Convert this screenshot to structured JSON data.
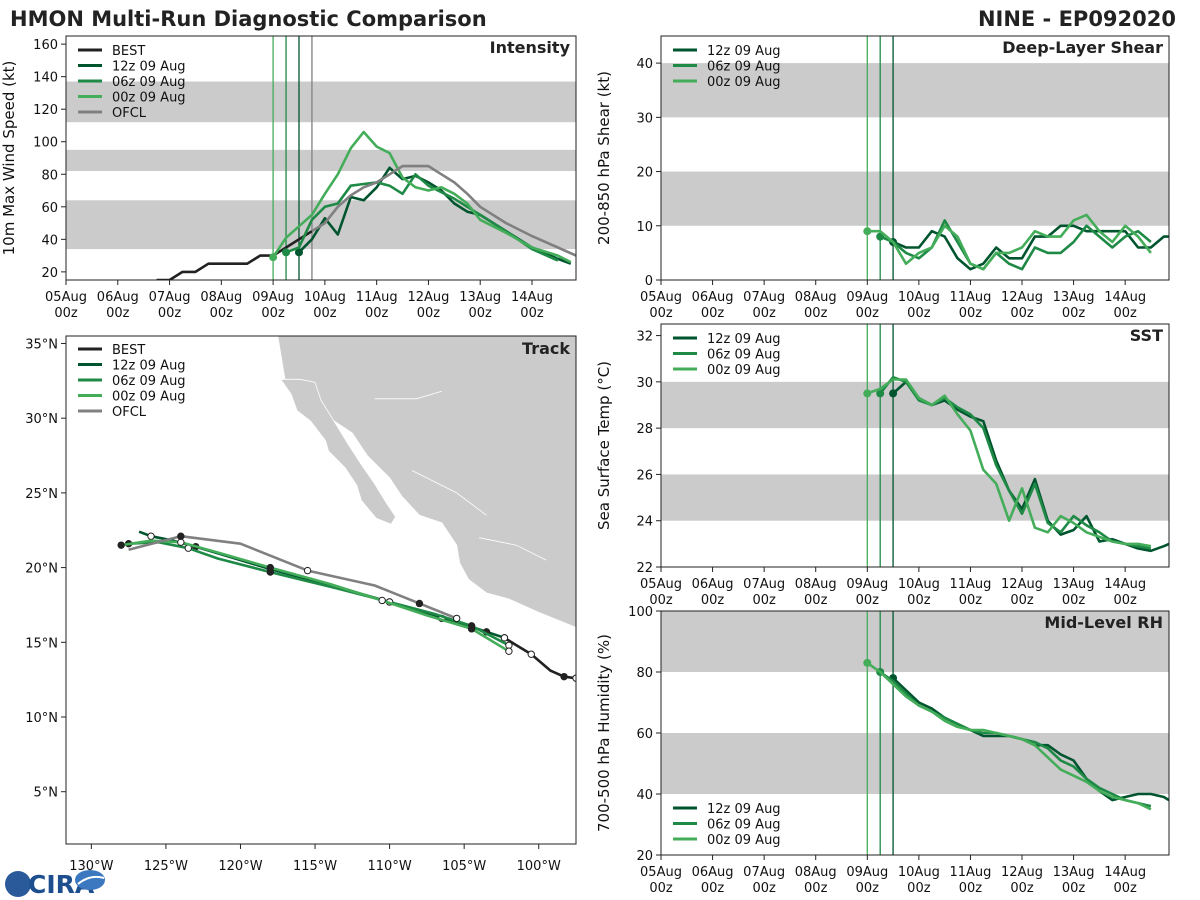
{
  "header": {
    "title": "HMON Multi-Run Diagnostic Comparison",
    "storm": "NINE - EP092020"
  },
  "logo": {
    "text": "CIRA"
  },
  "colors": {
    "BEST": "#222222",
    "12z": "#00552e",
    "06z": "#1e8a46",
    "00z": "#44ad5a",
    "OFCL": "#808080",
    "band": "#cbcbcb",
    "land": "#cbcbcb"
  },
  "time_axis": {
    "labels": [
      "05Aug\n00z",
      "06Aug\n00z",
      "07Aug\n00z",
      "08Aug\n00z",
      "09Aug\n00z",
      "10Aug\n00z",
      "11Aug\n00z",
      "12Aug\n00z",
      "13Aug\n00z",
      "14Aug\n00z"
    ],
    "range": [
      0,
      9.85
    ],
    "init_lines": [
      4.0,
      4.25,
      4.5
    ],
    "ofcl_line": 4.75
  },
  "chart_data": [
    {
      "id": "intensity",
      "type": "line",
      "panel_title": "Intensity",
      "ylabel": "10m Max Wind Speed (kt)",
      "ylim": [
        15,
        165
      ],
      "yticks": [
        20,
        40,
        60,
        80,
        100,
        120,
        140,
        160
      ],
      "bands": [
        [
          34,
          64
        ],
        [
          82,
          95
        ],
        [
          112,
          137
        ]
      ],
      "legend": [
        "BEST",
        "12z 09 Aug",
        "06z 09 Aug",
        "00z 09 Aug",
        "OFCL"
      ],
      "series": [
        {
          "name": "BEST",
          "key": "BEST",
          "x": [
            1.75,
            2.0,
            2.25,
            2.5,
            2.75,
            3.0,
            3.25,
            3.5,
            3.75,
            4.0,
            4.25,
            4.5,
            4.75
          ],
          "y": [
            15,
            15,
            20,
            20,
            25,
            25,
            25,
            25,
            30,
            30,
            35,
            40,
            45
          ],
          "markers": []
        },
        {
          "name": "12z 09 Aug",
          "key": "12z",
          "x": [
            4.5,
            4.75,
            5.0,
            5.25,
            5.5,
            5.75,
            6.0,
            6.25,
            6.5,
            6.75,
            7.0,
            7.25,
            7.5,
            7.75,
            8.0,
            8.5,
            9.0,
            9.5,
            9.75
          ],
          "y": [
            32,
            40,
            53,
            43,
            66,
            64,
            72,
            84,
            77,
            79,
            75,
            70,
            62,
            57,
            55,
            45,
            35,
            28,
            25
          ],
          "markers": [
            4.5
          ]
        },
        {
          "name": "06z 09 Aug",
          "key": "06z",
          "x": [
            4.25,
            4.5,
            4.75,
            5.0,
            5.25,
            5.5,
            5.75,
            6.0,
            6.25,
            6.5,
            6.75,
            7.0,
            7.25,
            7.5,
            7.75,
            8.0,
            8.5,
            9.0,
            9.5
          ],
          "y": [
            32,
            35,
            52,
            60,
            62,
            73,
            74,
            75,
            73,
            68,
            80,
            73,
            69,
            65,
            60,
            55,
            45,
            34,
            27
          ],
          "markers": [
            4.25
          ]
        },
        {
          "name": "00z 09 Aug",
          "key": "00z",
          "x": [
            4.0,
            4.25,
            4.5,
            4.75,
            5.0,
            5.25,
            5.5,
            5.75,
            6.0,
            6.25,
            6.5,
            6.75,
            7.0,
            7.25,
            7.5,
            7.75,
            8.0,
            8.5,
            9.0,
            9.5,
            9.75
          ],
          "y": [
            29,
            41,
            48,
            55,
            68,
            80,
            96,
            106,
            97,
            93,
            78,
            72,
            70,
            72,
            68,
            62,
            52,
            44,
            35,
            30,
            26
          ],
          "markers": [
            4.0
          ]
        },
        {
          "name": "OFCL",
          "key": "OFCL",
          "x": [
            4.75,
            5.0,
            5.25,
            5.5,
            5.75,
            6.0,
            6.25,
            6.5,
            6.75,
            7.0,
            7.25,
            7.5,
            7.75,
            8.0,
            8.5,
            9.0,
            9.5,
            9.85
          ],
          "y": [
            45,
            50,
            60,
            67,
            72,
            75,
            80,
            85,
            85,
            85,
            80,
            75,
            68,
            60,
            50,
            42,
            35,
            30
          ],
          "markers": []
        }
      ]
    },
    {
      "id": "shear",
      "type": "line",
      "panel_title": "Deep-Layer Shear",
      "ylabel": "200-850 hPa Shear (kt)",
      "ylim": [
        0,
        45
      ],
      "yticks": [
        0,
        10,
        20,
        30,
        40
      ],
      "bands": [
        [
          10,
          20
        ],
        [
          30,
          40
        ]
      ],
      "legend": [
        "12z 09 Aug",
        "06z 09 Aug",
        "00z 09 Aug"
      ],
      "series": [
        {
          "name": "12z 09 Aug",
          "key": "12z",
          "x": [
            4.5,
            4.75,
            5.0,
            5.25,
            5.5,
            5.75,
            6.0,
            6.25,
            6.5,
            6.75,
            7.0,
            7.25,
            7.5,
            7.75,
            8.0,
            8.25,
            8.5,
            8.75,
            9.0,
            9.25,
            9.5,
            9.75,
            9.85
          ],
          "y": [
            7,
            6,
            6,
            9,
            8,
            4,
            2,
            3,
            6,
            4,
            4,
            8,
            8,
            10,
            10,
            9,
            9,
            9,
            9,
            6,
            6,
            8,
            8
          ],
          "markers": [
            4.5
          ]
        },
        {
          "name": "06z 09 Aug",
          "key": "06z",
          "x": [
            4.25,
            4.5,
            4.75,
            5.0,
            5.25,
            5.5,
            5.75,
            6.0,
            6.25,
            6.5,
            6.75,
            7.0,
            7.25,
            7.5,
            7.75,
            8.0,
            8.25,
            8.5,
            8.75,
            9.0,
            9.25,
            9.5
          ],
          "y": [
            8,
            7,
            5,
            4,
            6,
            11,
            7,
            3,
            2,
            5,
            3,
            2,
            6,
            5,
            5,
            7,
            10,
            8,
            6,
            8,
            9,
            7
          ],
          "markers": [
            4.25
          ]
        },
        {
          "name": "00z 09 Aug",
          "key": "00z",
          "x": [
            4.0,
            4.25,
            4.5,
            4.75,
            5.0,
            5.25,
            5.5,
            5.75,
            6.0,
            6.25,
            6.5,
            6.75,
            7.0,
            7.25,
            7.5,
            7.75,
            8.0,
            8.25,
            8.5,
            8.75,
            9.0,
            9.25,
            9.5
          ],
          "y": [
            9,
            9,
            7,
            3,
            5,
            6,
            10,
            8,
            3,
            2,
            5,
            5,
            6,
            9,
            8,
            8,
            11,
            12,
            9,
            7,
            10,
            8,
            5
          ],
          "markers": [
            4.0
          ]
        }
      ]
    },
    {
      "id": "sst",
      "type": "line",
      "panel_title": "SST",
      "ylabel": "Sea Surface Temp (°C)",
      "ylim": [
        22,
        32.5
      ],
      "yticks": [
        22,
        24,
        26,
        28,
        30,
        32
      ],
      "bands": [
        [
          24,
          26
        ],
        [
          28,
          30
        ]
      ],
      "legend": [
        "12z 09 Aug",
        "06z 09 Aug",
        "00z 09 Aug"
      ],
      "series": [
        {
          "name": "12z 09 Aug",
          "key": "12z",
          "x": [
            4.5,
            4.75,
            5.0,
            5.25,
            5.5,
            5.75,
            6.0,
            6.25,
            6.5,
            6.75,
            7.0,
            7.25,
            7.5,
            7.75,
            8.0,
            8.25,
            8.5,
            8.75,
            9.0,
            9.25,
            9.5,
            9.75,
            9.85
          ],
          "y": [
            29.5,
            30.0,
            29.3,
            29.0,
            29.2,
            28.8,
            28.5,
            28.3,
            26.6,
            25.3,
            24.5,
            25.8,
            24.0,
            23.4,
            23.6,
            24.2,
            23.1,
            23.2,
            23.0,
            22.8,
            22.7,
            22.9,
            23.0
          ],
          "markers": [
            4.5
          ]
        },
        {
          "name": "06z 09 Aug",
          "key": "06z",
          "x": [
            4.25,
            4.5,
            4.75,
            5.0,
            5.25,
            5.5,
            5.75,
            6.0,
            6.25,
            6.5,
            6.75,
            7.0,
            7.25,
            7.5,
            7.75,
            8.0,
            8.25,
            8.5,
            8.75,
            9.0,
            9.25,
            9.5
          ],
          "y": [
            29.5,
            30.2,
            30.0,
            29.2,
            29.0,
            29.3,
            28.9,
            28.6,
            28.0,
            26.4,
            25.3,
            24.3,
            25.6,
            23.9,
            23.5,
            24.2,
            23.8,
            23.5,
            23.1,
            23.0,
            22.9,
            22.8
          ],
          "markers": [
            4.25
          ]
        },
        {
          "name": "00z 09 Aug",
          "key": "00z",
          "x": [
            4.0,
            4.25,
            4.5,
            4.75,
            5.0,
            5.25,
            5.5,
            5.75,
            6.0,
            6.25,
            6.5,
            6.75,
            7.0,
            7.25,
            7.5,
            7.75,
            8.0,
            8.25,
            8.5,
            8.75,
            9.0,
            9.25,
            9.5
          ],
          "y": [
            29.5,
            29.7,
            30.1,
            30.1,
            29.3,
            29.0,
            29.4,
            28.6,
            27.9,
            26.2,
            25.6,
            24.0,
            25.4,
            23.7,
            23.5,
            24.2,
            23.9,
            23.5,
            23.3,
            23.1,
            23.0,
            23.0,
            22.9
          ],
          "markers": [
            4.0
          ]
        }
      ]
    },
    {
      "id": "rh",
      "type": "line",
      "panel_title": "Mid-Level RH",
      "ylabel": "700-500 hPa Humidity (%)",
      "ylim": [
        20,
        100
      ],
      "yticks": [
        20,
        40,
        60,
        80,
        100
      ],
      "bands": [
        [
          40,
          60
        ],
        [
          80,
          100
        ]
      ],
      "legend": [
        "12z 09 Aug",
        "06z 09 Aug",
        "00z 09 Aug"
      ],
      "series": [
        {
          "name": "12z 09 Aug",
          "key": "12z",
          "x": [
            4.5,
            4.75,
            5.0,
            5.25,
            5.5,
            5.75,
            6.0,
            6.25,
            6.5,
            6.75,
            7.0,
            7.25,
            7.5,
            7.75,
            8.0,
            8.25,
            8.5,
            8.75,
            9.0,
            9.25,
            9.5,
            9.75,
            9.85
          ],
          "y": [
            78,
            74,
            70,
            68,
            65,
            63,
            61,
            59,
            59,
            59,
            58,
            56,
            56,
            53,
            51,
            45,
            41,
            38,
            39,
            40,
            40,
            39,
            38
          ],
          "markers": [
            4.5
          ]
        },
        {
          "name": "06z 09 Aug",
          "key": "06z",
          "x": [
            4.25,
            4.5,
            4.75,
            5.0,
            5.25,
            5.5,
            5.75,
            6.0,
            6.25,
            6.5,
            6.75,
            7.0,
            7.25,
            7.5,
            7.75,
            8.0,
            8.25,
            8.5,
            8.75,
            9.0,
            9.25,
            9.5
          ],
          "y": [
            80,
            77,
            73,
            69,
            67,
            65,
            63,
            61,
            60,
            60,
            59,
            58,
            57,
            55,
            51,
            49,
            45,
            42,
            40,
            38,
            37,
            36
          ],
          "markers": [
            4.25
          ]
        },
        {
          "name": "00z 09 Aug",
          "key": "00z",
          "x": [
            4.0,
            4.25,
            4.5,
            4.75,
            5.0,
            5.25,
            5.5,
            5.75,
            6.0,
            6.25,
            6.5,
            6.75,
            7.0,
            7.25,
            7.5,
            7.75,
            8.0,
            8.25,
            8.5,
            8.75,
            9.0,
            9.25,
            9.5
          ],
          "y": [
            83,
            80,
            76,
            72,
            69,
            67,
            64,
            62,
            61,
            61,
            60,
            59,
            58,
            56,
            52,
            48,
            46,
            44,
            41,
            39,
            38,
            37,
            35
          ],
          "markers": [
            4.0
          ]
        }
      ]
    },
    {
      "id": "track",
      "type": "line",
      "panel_title": "Track",
      "xticks": [
        -130,
        -125,
        -120,
        -115,
        -110,
        -105,
        -100
      ],
      "xtick_labels": [
        "130°W",
        "125°W",
        "120°W",
        "115°W",
        "110°W",
        "105°W",
        "100°W"
      ],
      "yticks": [
        5,
        10,
        15,
        20,
        25,
        30,
        35
      ],
      "ytick_labels": [
        "5°N",
        "10°N",
        "15°N",
        "20°N",
        "25°N",
        "30°N",
        "35°N"
      ],
      "xlim": [
        -131.7,
        -97.5
      ],
      "ylim": [
        1.5,
        35.5
      ],
      "legend": [
        "BEST",
        "12z 09 Aug",
        "06z 09 Aug",
        "00z 09 Aug",
        "OFCL"
      ],
      "series": [
        {
          "name": "BEST",
          "key": "BEST",
          "lon": [
            -97.5,
            -98.3,
            -99.2,
            -100.5,
            -101.5,
            -102.3
          ],
          "lat": [
            12.6,
            12.7,
            13.1,
            14.2,
            14.8,
            15.3
          ]
        },
        {
          "name": "12z 09 Aug",
          "key": "12z",
          "lon": [
            -102.3,
            -103.5,
            -105.0,
            -106.5,
            -108.0,
            -110.0,
            -113.5,
            -118.0,
            -121.0,
            -123.0,
            -124.5,
            -126.0,
            -126.8
          ],
          "lat": [
            15.3,
            15.7,
            16.2,
            16.6,
            17.0,
            17.7,
            18.7,
            19.9,
            20.8,
            21.4,
            21.8,
            22.1,
            22.4
          ]
        },
        {
          "name": "06z 09 Aug",
          "key": "06z",
          "lon": [
            -102.0,
            -104.5,
            -107.0,
            -110.0,
            -113.5,
            -118.0,
            -121.5,
            -123.5,
            -125.5,
            -127.5
          ],
          "lat": [
            14.8,
            16.1,
            16.9,
            17.7,
            18.6,
            19.7,
            20.6,
            21.3,
            21.7,
            21.6
          ]
        },
        {
          "name": "00z 09 Aug",
          "key": "00z",
          "lon": [
            -102.0,
            -104.5,
            -107.5,
            -110.5,
            -114.0,
            -118.0,
            -121.5,
            -124.0,
            -126.0,
            -128.0
          ],
          "lat": [
            14.4,
            15.9,
            16.8,
            17.8,
            18.9,
            20.0,
            21.0,
            21.7,
            21.8,
            21.5
          ]
        },
        {
          "name": "OFCL",
          "key": "OFCL",
          "lon": [
            -105.5,
            -108.0,
            -111.0,
            -115.5,
            -120.0,
            -124.0,
            -127.5
          ],
          "lat": [
            16.6,
            17.6,
            18.8,
            19.8,
            21.6,
            22.1,
            21.2
          ]
        }
      ]
    }
  ]
}
